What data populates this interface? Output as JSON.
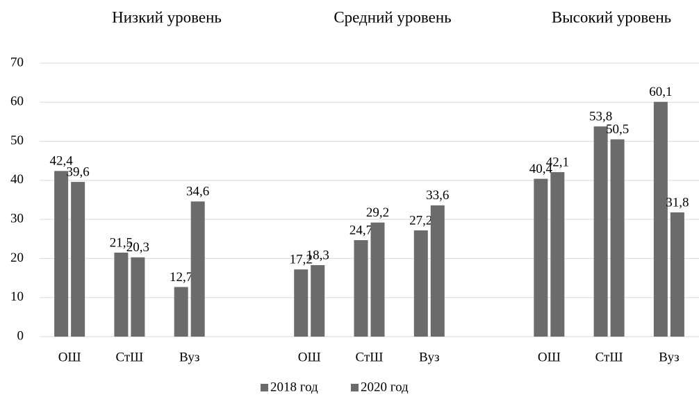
{
  "chart_data": {
    "type": "bar",
    "group_titles": [
      "Низкий уровень",
      "Средний уровень",
      "Высокий уровень"
    ],
    "categories": [
      "ОШ",
      "СтШ",
      "Вуз",
      null,
      "ОШ",
      "СтШ",
      "Вуз",
      null,
      "ОШ",
      "СтШ",
      "Вуз"
    ],
    "series": [
      {
        "name": "2018 год",
        "color": "#6b6b6b",
        "values": [
          42.4,
          21.5,
          12.7,
          null,
          17.2,
          24.7,
          27.2,
          null,
          40.4,
          53.8,
          60.1
        ],
        "value_labels": [
          "42,4",
          "21,5",
          "12,7",
          null,
          "17,2",
          "24,7",
          "27,2",
          null,
          "40,4",
          "53,8",
          "60,1"
        ]
      },
      {
        "name": "2020 год",
        "color": "#6b6b6b",
        "values": [
          39.6,
          20.3,
          34.6,
          null,
          18.3,
          29.2,
          33.6,
          null,
          42.1,
          50.5,
          31.8
        ],
        "value_labels": [
          "39,6",
          "20,3",
          "34,6",
          null,
          "18,3",
          "29,2",
          "33,6",
          null,
          "42,1",
          "50,5",
          "31,8"
        ]
      }
    ],
    "ylim": [
      0,
      70
    ],
    "yticks": [
      0,
      10,
      20,
      30,
      40,
      50,
      60,
      70
    ],
    "grid": true,
    "legend": "bottom"
  }
}
